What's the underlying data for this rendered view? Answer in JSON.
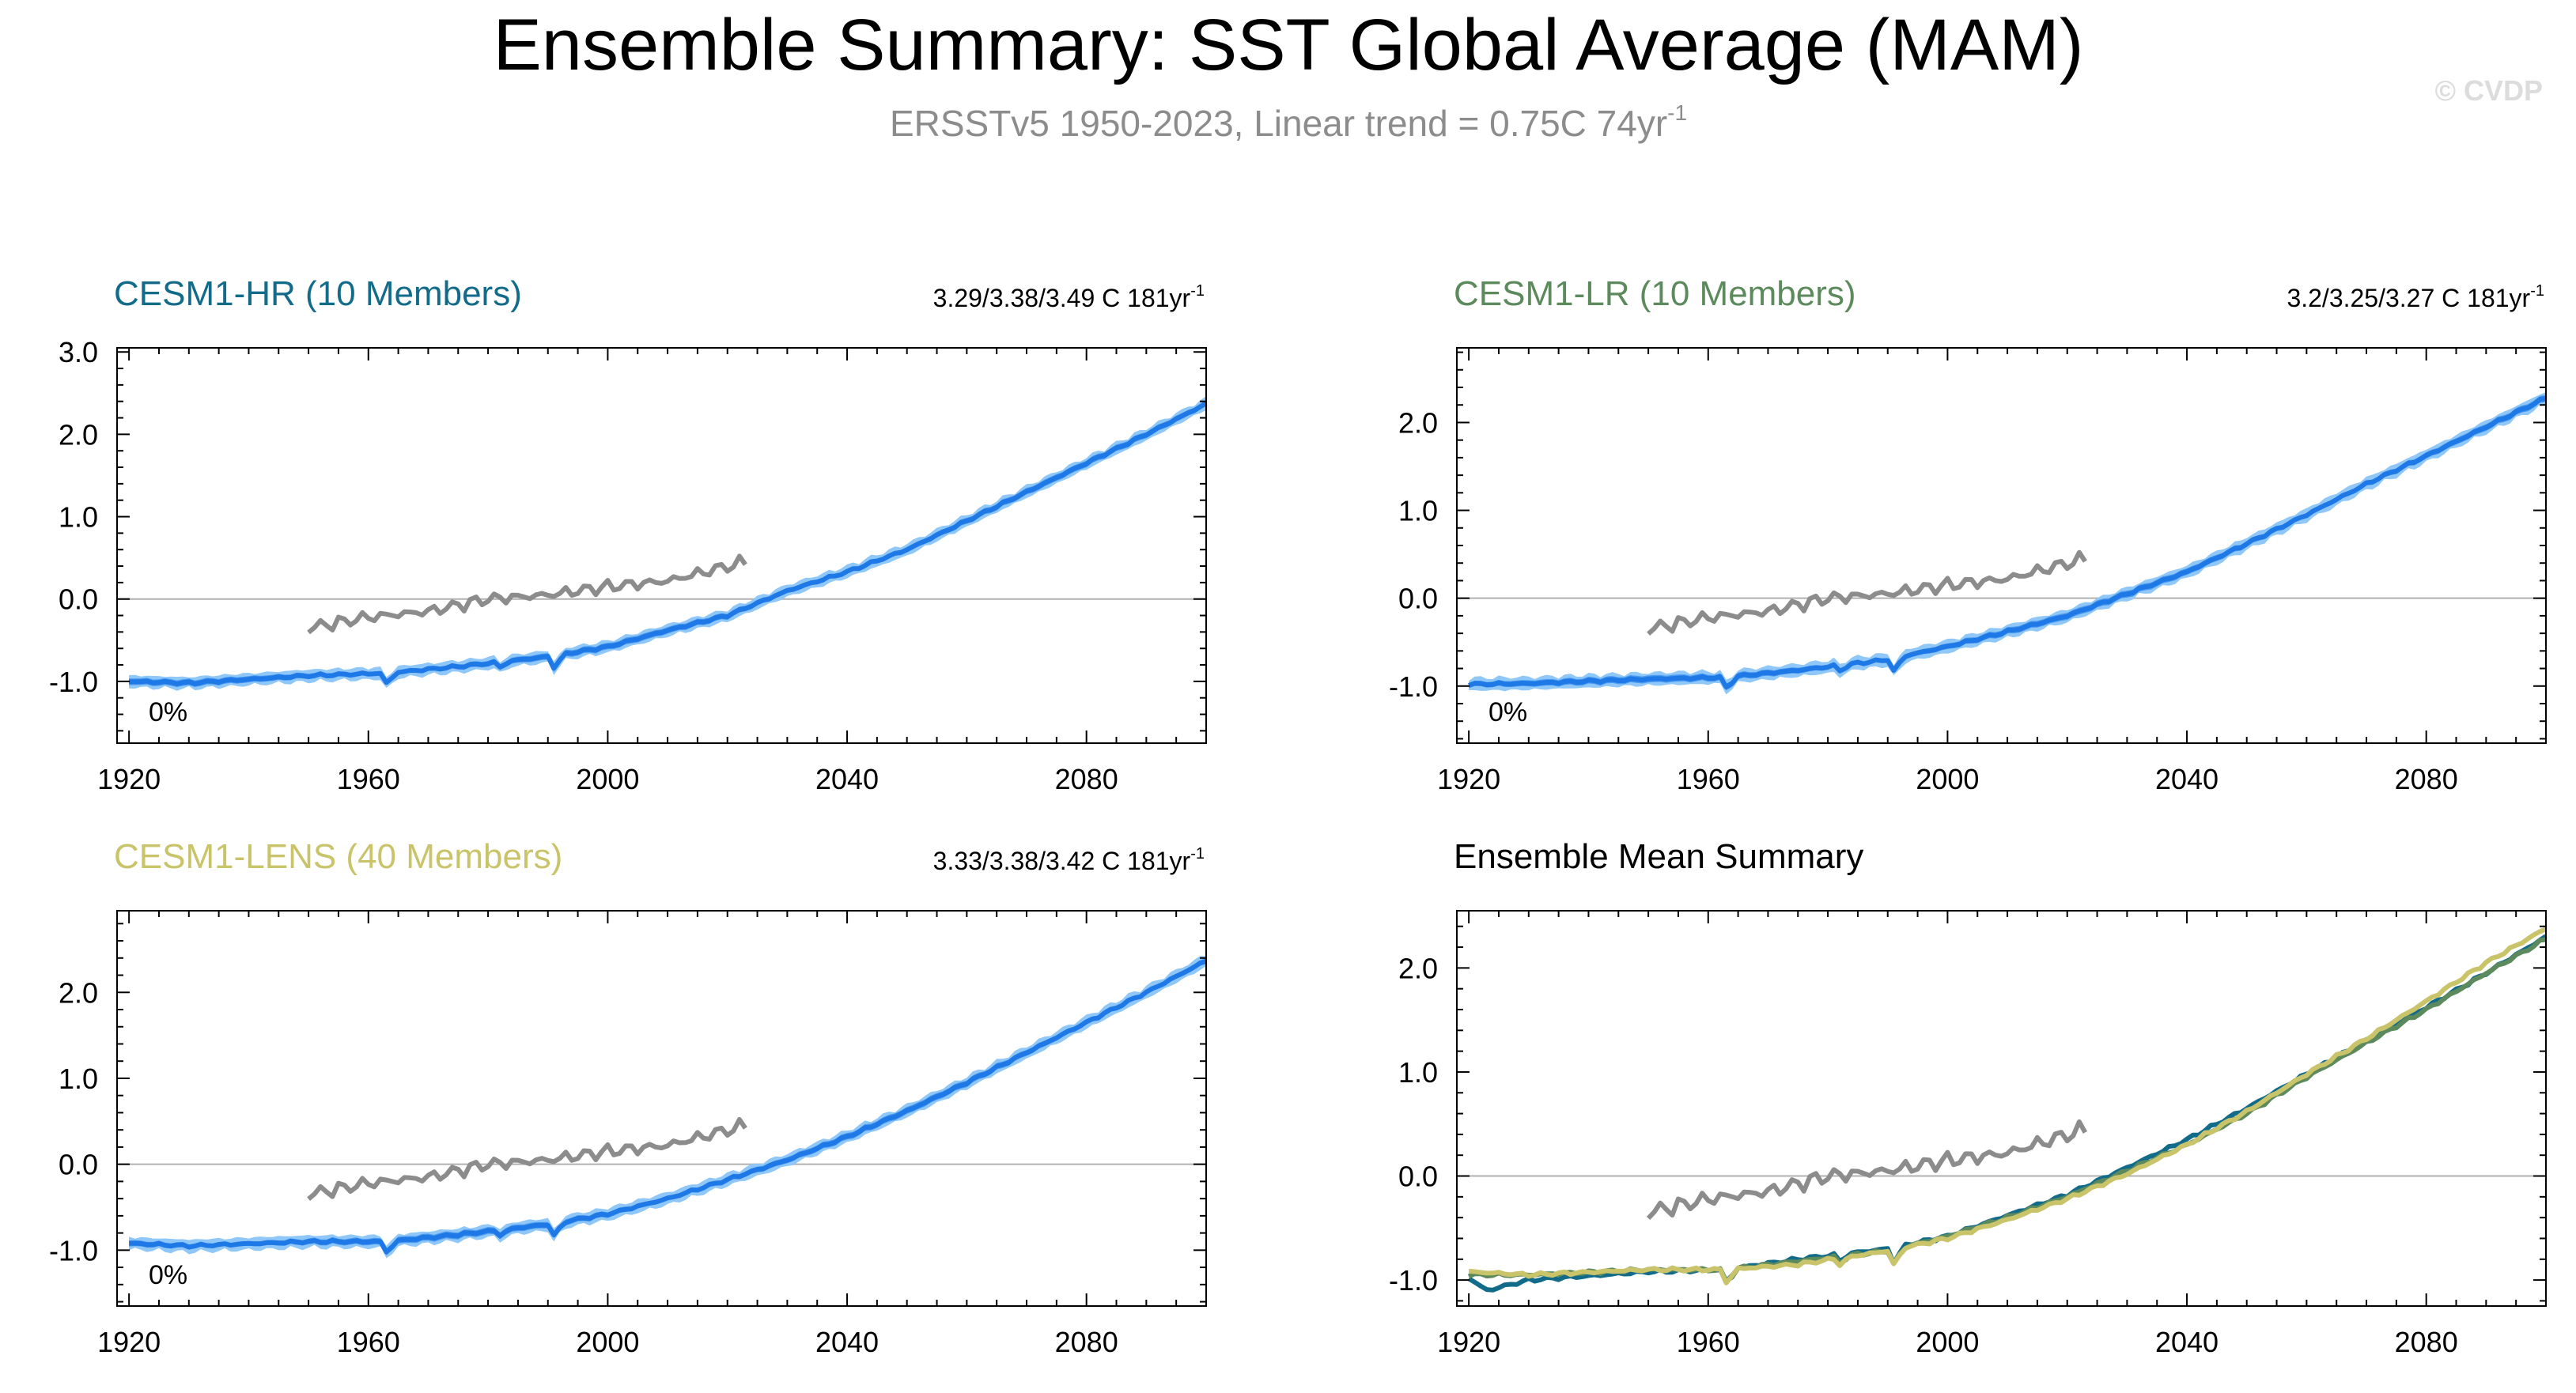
{
  "title": "Ensemble Summary: SST Global Average (MAM)",
  "subtitle": {
    "text": "ERSSTv5 1950-2023, Linear trend = 0.75C 74yr",
    "superscript": "-1"
  },
  "watermark": "© CVDP",
  "colors": {
    "observed": "#8c8c8c",
    "ensemble_line": "#1e78e6",
    "ensemble_band_inner": "#4a9af0",
    "ensemble_band_outer": "#8ec7f8",
    "cesm1_hr": "#136b8a",
    "cesm1_lr": "#5c8a5c",
    "cesm1_lens": "#c9c36a",
    "zero_line": "#b0b0b0",
    "axis": "#000000"
  },
  "chart_data": [
    {
      "type": "line",
      "title": "CESM1-HR (10 Members)",
      "title_color": "#136b8a",
      "trend_label": "3.29/3.38/3.49 C 181yr",
      "trend_superscript": "-1",
      "percent_label": "0%",
      "xlim": [
        1918,
        2100
      ],
      "ylim": [
        -1.75,
        3.05
      ],
      "xticks": [
        "1920",
        "1960",
        "2000",
        "2040",
        "2080"
      ],
      "yticks": [
        "-1.0",
        "0.0",
        "1.0",
        "2.0",
        "3.0"
      ],
      "grid": false,
      "zero_line": true,
      "series": [
        {
          "role": "ensemble",
          "anchors": [
            [
              1920,
              -1.0
            ],
            [
              1930,
              -1.02
            ],
            [
              1950,
              -0.93
            ],
            [
              1963,
              -0.9
            ],
            [
              1975,
              -0.82
            ],
            [
              1990,
              -0.7
            ],
            [
              2000,
              -0.58
            ],
            [
              2010,
              -0.38
            ],
            [
              2020,
              -0.2
            ],
            [
              2030,
              0.1
            ],
            [
              2040,
              0.33
            ],
            [
              2050,
              0.6
            ],
            [
              2060,
              0.95
            ],
            [
              2070,
              1.3
            ],
            [
              2080,
              1.65
            ],
            [
              2090,
              2.0
            ],
            [
              2100,
              2.37
            ]
          ]
        },
        {
          "role": "observed",
          "anchors": [
            [
              1950,
              -0.35
            ],
            [
              1960,
              -0.22
            ],
            [
              1970,
              -0.15
            ],
            [
              1980,
              0.0
            ],
            [
              1990,
              0.05
            ],
            [
              2000,
              0.15
            ],
            [
              2010,
              0.22
            ],
            [
              2023,
              0.45
            ]
          ]
        }
      ]
    },
    {
      "type": "line",
      "title": "CESM1-LR (10 Members)",
      "title_color": "#5c8a5c",
      "trend_label": "3.2/3.25/3.27 C 181yr",
      "trend_superscript": "-1",
      "percent_label": "0%",
      "xlim": [
        1918,
        2100
      ],
      "ylim": [
        -1.65,
        2.85
      ],
      "xticks": [
        "1920",
        "1960",
        "2000",
        "2040",
        "2080"
      ],
      "yticks": [
        "-1.0",
        "0.0",
        "1.0",
        "2.0"
      ],
      "grid": false,
      "zero_line": true,
      "series": [
        {
          "role": "ensemble",
          "anchors": [
            [
              1920,
              -0.98
            ],
            [
              1930,
              -0.97
            ],
            [
              1950,
              -0.92
            ],
            [
              1963,
              -0.9
            ],
            [
              1975,
              -0.82
            ],
            [
              1990,
              -0.7
            ],
            [
              2000,
              -0.55
            ],
            [
              2010,
              -0.38
            ],
            [
              2020,
              -0.2
            ],
            [
              2030,
              0.05
            ],
            [
              2040,
              0.3
            ],
            [
              2050,
              0.62
            ],
            [
              2060,
              0.95
            ],
            [
              2070,
              1.3
            ],
            [
              2080,
              1.62
            ],
            [
              2090,
              1.95
            ],
            [
              2100,
              2.28
            ]
          ]
        },
        {
          "role": "observed",
          "anchors": [
            [
              1950,
              -0.35
            ],
            [
              1960,
              -0.22
            ],
            [
              1970,
              -0.15
            ],
            [
              1980,
              0.0
            ],
            [
              1990,
              0.05
            ],
            [
              2000,
              0.15
            ],
            [
              2010,
              0.22
            ],
            [
              2023,
              0.45
            ]
          ]
        }
      ]
    },
    {
      "type": "line",
      "title": "CESM1-LENS (40 Members)",
      "title_color": "#c9c36a",
      "trend_label": "3.33/3.38/3.42 C 181yr",
      "trend_superscript": "-1",
      "percent_label": "0%",
      "xlim": [
        1918,
        2100
      ],
      "ylim": [
        -1.65,
        2.95
      ],
      "xticks": [
        "1920",
        "1960",
        "2000",
        "2040",
        "2080"
      ],
      "yticks": [
        "-1.0",
        "0.0",
        "1.0",
        "2.0"
      ],
      "grid": false,
      "zero_line": true,
      "series": [
        {
          "role": "ensemble",
          "anchors": [
            [
              1920,
              -0.92
            ],
            [
              1930,
              -0.95
            ],
            [
              1950,
              -0.9
            ],
            [
              1963,
              -0.9
            ],
            [
              1975,
              -0.82
            ],
            [
              1990,
              -0.7
            ],
            [
              2000,
              -0.58
            ],
            [
              2010,
              -0.4
            ],
            [
              2020,
              -0.18
            ],
            [
              2030,
              0.05
            ],
            [
              2040,
              0.32
            ],
            [
              2050,
              0.62
            ],
            [
              2060,
              0.95
            ],
            [
              2070,
              1.3
            ],
            [
              2080,
              1.65
            ],
            [
              2090,
              2.0
            ],
            [
              2100,
              2.37
            ]
          ]
        },
        {
          "role": "observed",
          "anchors": [
            [
              1950,
              -0.35
            ],
            [
              1960,
              -0.22
            ],
            [
              1970,
              -0.15
            ],
            [
              1980,
              0.0
            ],
            [
              1990,
              0.05
            ],
            [
              2000,
              0.15
            ],
            [
              2010,
              0.22
            ],
            [
              2023,
              0.45
            ]
          ]
        }
      ]
    },
    {
      "type": "line",
      "title": "Ensemble Mean Summary",
      "title_color": "#000000",
      "xlim": [
        1918,
        2100
      ],
      "ylim": [
        -1.25,
        2.55
      ],
      "xticks": [
        "1920",
        "1960",
        "2000",
        "2040",
        "2080"
      ],
      "yticks": [
        "-1.0",
        "0.0",
        "1.0",
        "2.0"
      ],
      "grid": false,
      "zero_line": true,
      "series": [
        {
          "role": "mean_hr",
          "anchors": [
            [
              1920,
              -0.98
            ],
            [
              1923,
              -1.1
            ],
            [
              1930,
              -1.0
            ],
            [
              1950,
              -0.92
            ],
            [
              1963,
              -0.9
            ],
            [
              1975,
              -0.8
            ],
            [
              1990,
              -0.7
            ],
            [
              2000,
              -0.58
            ],
            [
              2010,
              -0.38
            ],
            [
              2020,
              -0.18
            ],
            [
              2030,
              0.08
            ],
            [
              2040,
              0.35
            ],
            [
              2050,
              0.65
            ],
            [
              2060,
              0.98
            ],
            [
              2070,
              1.3
            ],
            [
              2080,
              1.62
            ],
            [
              2090,
              1.95
            ],
            [
              2100,
              2.3
            ]
          ]
        },
        {
          "role": "mean_lr",
          "anchors": [
            [
              1920,
              -0.95
            ],
            [
              1930,
              -0.95
            ],
            [
              1950,
              -0.9
            ],
            [
              1963,
              -0.9
            ],
            [
              1975,
              -0.82
            ],
            [
              1990,
              -0.72
            ],
            [
              2000,
              -0.58
            ],
            [
              2010,
              -0.4
            ],
            [
              2020,
              -0.2
            ],
            [
              2030,
              0.05
            ],
            [
              2040,
              0.3
            ],
            [
              2050,
              0.6
            ],
            [
              2060,
              0.95
            ],
            [
              2070,
              1.28
            ],
            [
              2080,
              1.6
            ],
            [
              2090,
              1.95
            ],
            [
              2100,
              2.28
            ]
          ]
        },
        {
          "role": "mean_lens",
          "anchors": [
            [
              1920,
              -0.92
            ],
            [
              1930,
              -0.95
            ],
            [
              1950,
              -0.9
            ],
            [
              1963,
              -0.9
            ],
            [
              1975,
              -0.85
            ],
            [
              1990,
              -0.72
            ],
            [
              2000,
              -0.6
            ],
            [
              2010,
              -0.42
            ],
            [
              2020,
              -0.22
            ],
            [
              2030,
              0.02
            ],
            [
              2040,
              0.3
            ],
            [
              2050,
              0.62
            ],
            [
              2060,
              0.98
            ],
            [
              2070,
              1.32
            ],
            [
              2080,
              1.68
            ],
            [
              2090,
              2.05
            ],
            [
              2100,
              2.38
            ]
          ]
        },
        {
          "role": "observed",
          "anchors": [
            [
              1950,
              -0.35
            ],
            [
              1960,
              -0.22
            ],
            [
              1970,
              -0.15
            ],
            [
              1980,
              0.0
            ],
            [
              1990,
              0.05
            ],
            [
              2000,
              0.15
            ],
            [
              2010,
              0.22
            ],
            [
              2023,
              0.45
            ]
          ]
        }
      ]
    }
  ]
}
